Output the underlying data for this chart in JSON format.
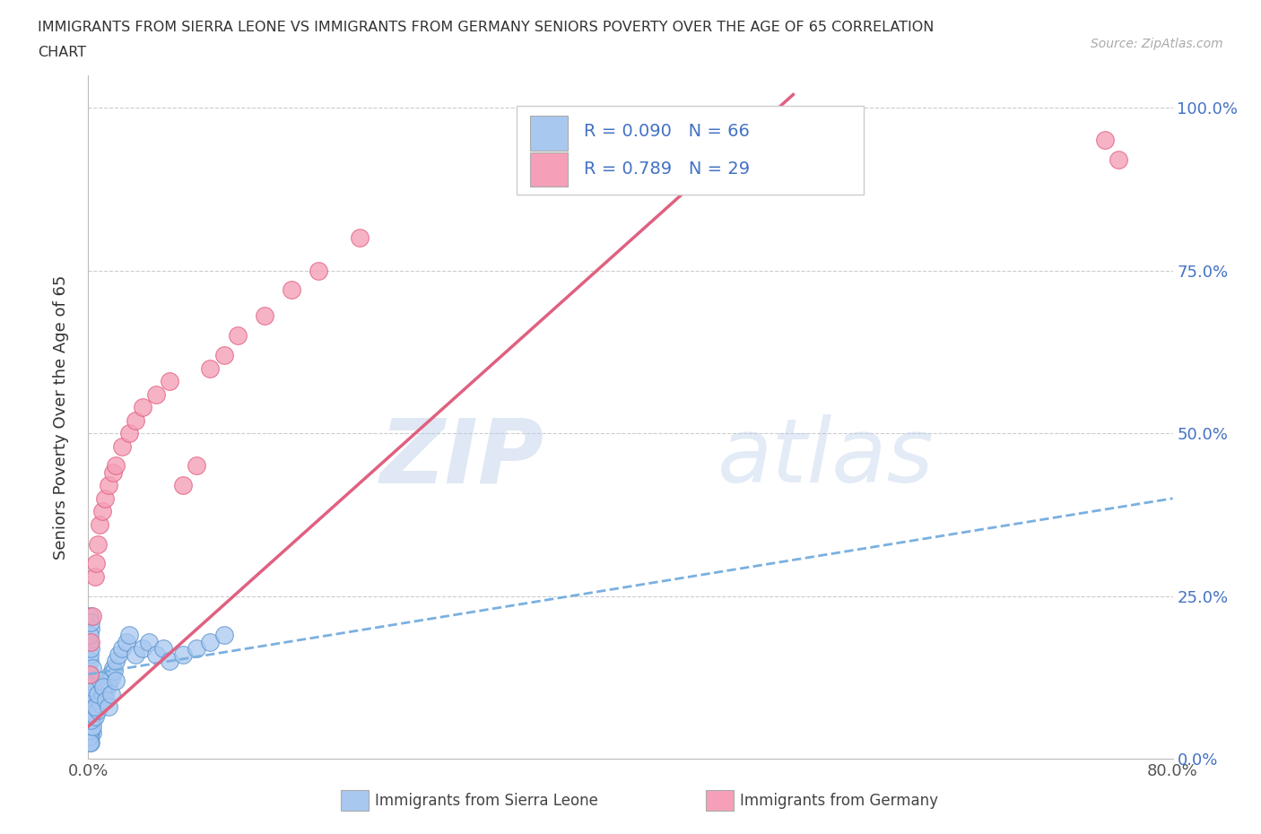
{
  "title_line1": "IMMIGRANTS FROM SIERRA LEONE VS IMMIGRANTS FROM GERMANY SENIORS POVERTY OVER THE AGE OF 65 CORRELATION",
  "title_line2": "CHART",
  "source_text": "Source: ZipAtlas.com",
  "ylabel": "Seniors Poverty Over the Age of 65",
  "watermark": "ZIPatlas",
  "xmin": 0.0,
  "xmax": 0.8,
  "ymin": 0.0,
  "ymax": 1.05,
  "yticks": [
    0.0,
    0.25,
    0.5,
    0.75,
    1.0
  ],
  "ytick_labels": [
    "0.0%",
    "25.0%",
    "50.0%",
    "75.0%",
    "100.0%"
  ],
  "xticks": [
    0.0,
    0.2,
    0.4,
    0.6,
    0.8
  ],
  "xtick_labels": [
    "0.0%",
    "",
    "",
    "",
    "80.0%"
  ],
  "color_sl": "#a8c8f0",
  "color_sl_edge": "#5590cc",
  "color_de": "#f5a0b8",
  "color_de_edge": "#e06080",
  "color_sl_trend": "#7ab0e0",
  "color_de_trend": "#e06080",
  "color_text_blue": "#4472c4",
  "background": "#ffffff",
  "grid_color": "#cccccc",
  "sierra_leone_x": [
    0.001,
    0.002,
    0.003,
    0.001,
    0.002,
    0.003,
    0.004,
    0.001,
    0.002,
    0.001,
    0.001,
    0.002,
    0.001,
    0.002,
    0.001,
    0.002,
    0.003,
    0.001,
    0.002,
    0.001,
    0.002,
    0.003,
    0.001,
    0.002,
    0.001,
    0.003,
    0.002,
    0.004,
    0.005,
    0.006,
    0.007,
    0.008,
    0.009,
    0.01,
    0.011,
    0.012,
    0.013,
    0.014,
    0.015,
    0.016,
    0.017,
    0.018,
    0.019,
    0.02,
    0.022,
    0.025,
    0.028,
    0.03,
    0.035,
    0.04,
    0.045,
    0.05,
    0.055,
    0.06,
    0.07,
    0.08,
    0.09,
    0.1,
    0.005,
    0.007,
    0.009,
    0.011,
    0.013,
    0.015,
    0.017,
    0.02
  ],
  "sierra_leone_y": [
    0.05,
    0.04,
    0.06,
    0.08,
    0.07,
    0.1,
    0.09,
    0.12,
    0.11,
    0.15,
    0.18,
    0.2,
    0.22,
    0.13,
    0.16,
    0.17,
    0.14,
    0.19,
    0.21,
    0.03,
    0.025,
    0.04,
    0.035,
    0.045,
    0.025,
    0.05,
    0.06,
    0.07,
    0.065,
    0.08,
    0.075,
    0.09,
    0.085,
    0.1,
    0.095,
    0.11,
    0.105,
    0.12,
    0.115,
    0.13,
    0.125,
    0.14,
    0.135,
    0.15,
    0.16,
    0.17,
    0.18,
    0.19,
    0.16,
    0.17,
    0.18,
    0.16,
    0.17,
    0.15,
    0.16,
    0.17,
    0.18,
    0.19,
    0.08,
    0.1,
    0.12,
    0.11,
    0.09,
    0.08,
    0.1,
    0.12
  ],
  "germany_x": [
    0.001,
    0.002,
    0.003,
    0.005,
    0.006,
    0.007,
    0.008,
    0.01,
    0.012,
    0.015,
    0.018,
    0.02,
    0.025,
    0.03,
    0.035,
    0.04,
    0.05,
    0.06,
    0.07,
    0.08,
    0.09,
    0.1,
    0.11,
    0.13,
    0.15,
    0.17,
    0.2,
    0.75,
    0.76
  ],
  "germany_y": [
    0.13,
    0.18,
    0.22,
    0.28,
    0.3,
    0.33,
    0.36,
    0.38,
    0.4,
    0.42,
    0.44,
    0.45,
    0.48,
    0.5,
    0.52,
    0.54,
    0.56,
    0.58,
    0.42,
    0.45,
    0.6,
    0.62,
    0.65,
    0.68,
    0.72,
    0.75,
    0.8,
    0.95,
    0.92
  ],
  "sl_trend_x": [
    0.0,
    0.8
  ],
  "sl_trend_y": [
    0.13,
    0.4
  ],
  "de_trend_x": [
    0.0,
    0.52
  ],
  "de_trend_y": [
    0.05,
    1.02
  ]
}
